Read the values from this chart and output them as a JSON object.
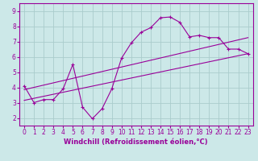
{
  "xlabel": "Windchill (Refroidissement éolien,°C)",
  "bg_color": "#cce8e8",
  "grid_color": "#aacccc",
  "line_color": "#990099",
  "xlim": [
    -0.5,
    23.5
  ],
  "ylim": [
    1.5,
    9.5
  ],
  "xticks": [
    0,
    1,
    2,
    3,
    4,
    5,
    6,
    7,
    8,
    9,
    10,
    11,
    12,
    13,
    14,
    15,
    16,
    17,
    18,
    19,
    20,
    21,
    22,
    23
  ],
  "yticks": [
    2,
    3,
    4,
    5,
    6,
    7,
    8,
    9
  ],
  "zigzag_x": [
    0,
    1,
    2,
    3,
    4,
    5,
    6,
    7,
    8,
    9,
    10,
    11,
    12,
    13,
    14,
    15,
    16,
    17,
    18,
    19,
    20,
    21,
    22,
    23
  ],
  "zigzag_y": [
    4.1,
    3.0,
    3.2,
    3.2,
    3.9,
    5.5,
    2.7,
    1.95,
    2.6,
    3.9,
    5.9,
    6.9,
    7.6,
    7.9,
    8.55,
    8.6,
    8.25,
    7.3,
    7.4,
    7.25,
    7.25,
    6.5,
    6.5,
    6.2
  ],
  "line1_x": [
    0,
    23
  ],
  "line1_y": [
    3.15,
    6.2
  ],
  "line2_x": [
    0,
    23
  ],
  "line2_y": [
    3.85,
    7.25
  ],
  "marker_size": 3.5,
  "tick_fontsize": 5.5,
  "xlabel_fontsize": 6.0
}
